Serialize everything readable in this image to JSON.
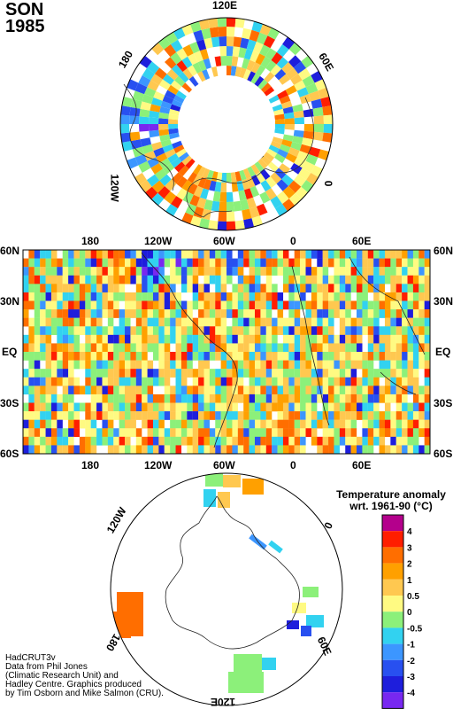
{
  "header": {
    "season": "SON",
    "year": "1985"
  },
  "north_polar": {
    "labels": {
      "top": "120E",
      "upper_left": "180",
      "upper_right": "60E",
      "left": "120W",
      "right": "0"
    }
  },
  "world_map": {
    "top_lon_labels": [
      "180",
      "120W",
      "60W",
      "0",
      "60E"
    ],
    "bottom_lon_labels": [
      "180",
      "120W",
      "60W",
      "0",
      "60E"
    ],
    "lat_labels": [
      "60N",
      "30N",
      "EQ",
      "30S",
      "60S"
    ]
  },
  "south_polar": {
    "labels": {
      "upper_left": "120W",
      "right": "0",
      "left": "180",
      "lower_right": "60E",
      "bottom": "120E"
    }
  },
  "legend": {
    "title_line1": "Temperature anomaly",
    "title_line2": "wrt. 1961-90  (°C)",
    "ticks": [
      "4",
      "3",
      "2",
      "1",
      "0.5",
      "0",
      "-0.5",
      "-1",
      "-2",
      "-3",
      "-4"
    ],
    "colors": [
      "#b4008c",
      "#ff1e00",
      "#ff6e00",
      "#ffa000",
      "#ffc850",
      "#fffa82",
      "#8cf07a",
      "#32d2f0",
      "#3c96ff",
      "#2850f0",
      "#1e1edc",
      "#7828f0"
    ]
  },
  "credit": {
    "lines": [
      "HadCRUT3v",
      "Data from Phil Jones",
      "(Climatic Research Unit) and",
      "Hadley Centre.  Graphics produced",
      "by Tim Osborn and Mike Salmon (CRU)."
    ]
  }
}
